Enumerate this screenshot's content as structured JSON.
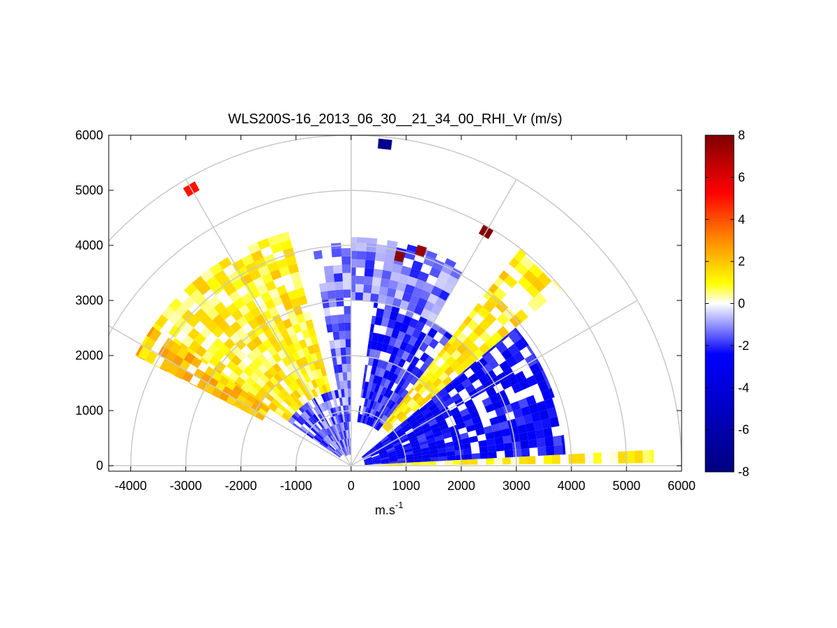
{
  "chart_data": {
    "type": "heatmap",
    "subtype": "polar-rhi-sector",
    "title": "WLS200S-16_2013_06_30__21_34_00_RHI_Vr (m/s)",
    "xlabel_base": "m.s",
    "xlabel_exponent": "-1",
    "ylabel": "",
    "xlim": [
      -4400,
      6000
    ],
    "ylim": [
      -100,
      6000
    ],
    "xticks": [
      -4000,
      -3000,
      -2000,
      -1000,
      0,
      1000,
      2000,
      3000,
      4000,
      5000,
      6000
    ],
    "yticks": [
      0,
      1000,
      2000,
      3000,
      4000,
      5000,
      6000
    ],
    "polar_grid": {
      "range_rings_m": [
        1000,
        2000,
        3000,
        4000,
        5000,
        6000
      ],
      "spokes_deg": [
        0,
        30,
        60,
        90,
        120,
        150,
        180
      ]
    },
    "colorbar": {
      "range": [
        -8,
        8
      ],
      "ticks": [
        -8,
        -6,
        -4,
        -2,
        0,
        2,
        4,
        6,
        8
      ],
      "colors": [
        "#000080",
        "#0000ff",
        "#ffffff",
        "#ffff00",
        "#ff8000",
        "#ff0000",
        "#800000"
      ]
    },
    "sectors": [
      {
        "az_from": 3,
        "az_to": 40,
        "r_from": 250,
        "r_to": 3900,
        "vr": -2.6
      },
      {
        "az_from": 40,
        "az_to": 52,
        "r_from": 900,
        "r_to": 5000,
        "vr": 1.3
      },
      {
        "az_from": 52,
        "az_to": 82,
        "r_from": 800,
        "r_to": 3000,
        "vr": -2.0
      },
      {
        "az_from": 60,
        "az_to": 90,
        "r_from": 3000,
        "r_to": 4150,
        "vr": -1.3
      },
      {
        "az_from": 90,
        "az_to": 100,
        "r_from": 200,
        "r_to": 4050,
        "vr": -1.2
      },
      {
        "az_from": 100,
        "az_to": 125,
        "r_from": 200,
        "r_to": 1400,
        "vr": -1.4
      },
      {
        "az_from": 105,
        "az_to": 145,
        "r_from": 1400,
        "r_to": 4400,
        "vr": 1.1
      },
      {
        "az_from": 125,
        "az_to": 145,
        "r_from": 250,
        "r_to": 1400,
        "vr": -1.6
      },
      {
        "az_from": 145,
        "az_to": 153,
        "r_from": 1800,
        "r_to": 4400,
        "vr": 2.0
      },
      {
        "az_from": 0.5,
        "az_to": 3,
        "r_from": 500,
        "r_to": 5500,
        "vr": 0.8
      }
    ],
    "features": [
      {
        "az": 72,
        "r": 4100,
        "vr": 7.5
      },
      {
        "az": 77,
        "r": 3900,
        "vr": 7.8
      },
      {
        "az": 60,
        "r": 4900,
        "vr": 7.9
      },
      {
        "az": 84,
        "r": 5870,
        "vr": -7.5
      },
      {
        "az": 120,
        "r": 5800,
        "vr": 5.0
      }
    ]
  }
}
